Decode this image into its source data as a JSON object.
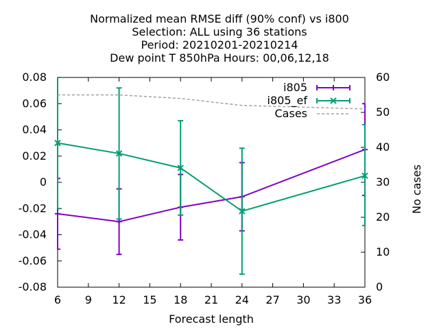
{
  "chart_data": {
    "type": "line",
    "title_lines": [
      "Normalized mean RMSE diff (90% conf) vs i800",
      "Selection: ALL using    36 stations",
      "Period: 20210201-20210214",
      "Dew point T 850hPa   Hours:  00,06,12,18"
    ],
    "xlabel": "Forecast length",
    "y2label": "No cases",
    "xlim": [
      6,
      36
    ],
    "ylim": [
      -0.08,
      0.08
    ],
    "y2lim": [
      0,
      60
    ],
    "xticks": [
      "6",
      "9",
      "12",
      "15",
      "18",
      "21",
      "24",
      "27",
      "30",
      "33",
      "36"
    ],
    "yticks": [
      "-0.08",
      "-0.06",
      "-0.04",
      "-0.02",
      "0",
      "0.02",
      "0.04",
      "0.06",
      "0.08"
    ],
    "y2ticks": [
      "0",
      "10",
      "20",
      "30",
      "40",
      "50",
      "60"
    ],
    "legend_position": "top-right",
    "grid": false,
    "series": [
      {
        "name": "i805",
        "color": "#8000c0",
        "marker": "plus",
        "axis": "y",
        "x": [
          6,
          12,
          18,
          24,
          36
        ],
        "y": [
          -0.024,
          -0.03,
          -0.019,
          -0.011,
          0.025
        ],
        "err_low": [
          -0.051,
          -0.055,
          -0.044,
          -0.037,
          -0.01
        ],
        "err_high": [
          0.003,
          -0.005,
          0.006,
          0.015,
          0.06
        ]
      },
      {
        "name": "i805_ef",
        "color": "#009e73",
        "marker": "cross",
        "axis": "y",
        "x": [
          6,
          12,
          18,
          24,
          36
        ],
        "y": [
          0.03,
          0.022,
          0.011,
          -0.022,
          0.005
        ],
        "err_low": [
          -0.02,
          -0.028,
          -0.025,
          -0.07,
          -0.033
        ],
        "err_high": [
          0.08,
          0.072,
          0.047,
          0.026,
          0.044
        ]
      },
      {
        "name": "Cases",
        "color": "#a0a0a0",
        "dash": true,
        "axis": "y2",
        "x": [
          6,
          12,
          18,
          24,
          36
        ],
        "y": [
          55,
          55,
          54,
          52,
          51
        ]
      }
    ]
  }
}
